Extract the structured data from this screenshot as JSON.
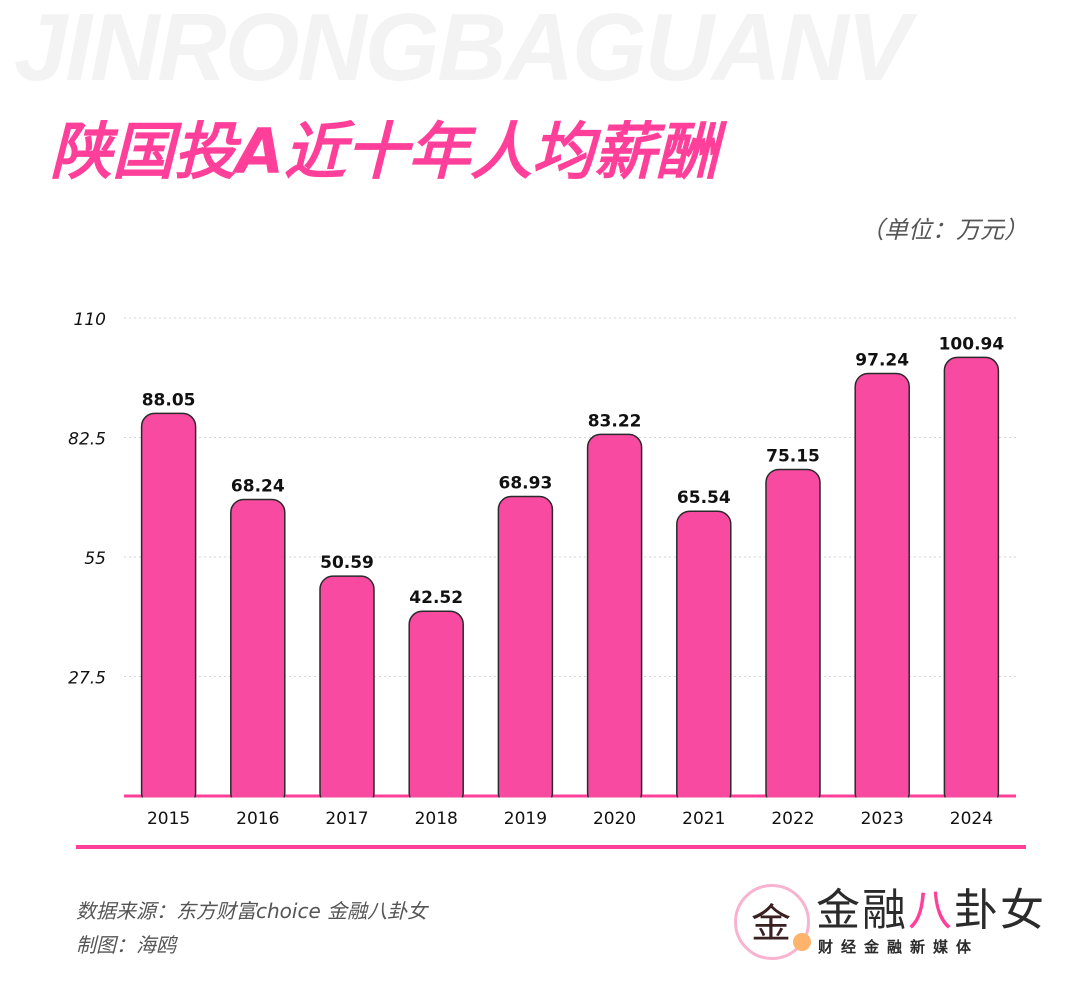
{
  "watermark": "JINRONGBAGUANV",
  "title": "陕国投A近十年人均薪酬",
  "unit": "（单位：万元）",
  "source": "数据来源：东方财富choice  金融八卦女",
  "maker": "制图：海鸥",
  "logo": {
    "glyph": "金",
    "main_a": "金融",
    "main_b": "八",
    "main_c": "卦女",
    "sub": "财经金融新媒体"
  },
  "colors": {
    "accent": "#ff3f9a",
    "bar": "#f94aa2",
    "text": "#111111",
    "muted": "#555555"
  },
  "chart_data": {
    "type": "bar",
    "categories": [
      "2015",
      "2016",
      "2017",
      "2018",
      "2019",
      "2020",
      "2021",
      "2022",
      "2023",
      "2024"
    ],
    "values": [
      88.05,
      68.24,
      50.59,
      42.52,
      68.93,
      83.22,
      65.54,
      75.15,
      97.24,
      100.94
    ],
    "labels": [
      "88.05",
      "68.24",
      "50.59",
      "42.52",
      "68.93",
      "83.22",
      "65.54",
      "75.15",
      "97.24",
      "100.94"
    ],
    "yticks": [
      "110",
      "82.5",
      "55",
      "27.5"
    ],
    "ytick_values": [
      110,
      82.5,
      55,
      27.5
    ],
    "ylim": [
      0,
      110
    ],
    "title": "陕国投A近十年人均薪酬",
    "ylabel": "（单位：万元）",
    "grid": true,
    "legend": "none"
  }
}
